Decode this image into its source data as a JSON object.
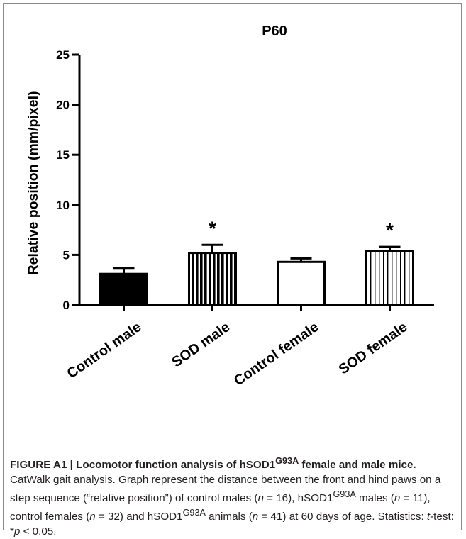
{
  "chart_data": {
    "type": "bar",
    "title": "P60",
    "ylabel": "Relative position (mm/pixel)",
    "xlabel": "",
    "ylim": [
      0,
      25
    ],
    "yticks": [
      0,
      5,
      10,
      15,
      20,
      25
    ],
    "categories": [
      "Control male",
      "SOD male",
      "Control female",
      "SOD female"
    ],
    "values": [
      3.1,
      5.2,
      4.3,
      5.4
    ],
    "errors": [
      0.6,
      0.8,
      0.35,
      0.4
    ],
    "significance": [
      "",
      "*",
      "",
      "*"
    ],
    "styles": [
      "solid-black",
      "black-vertical-stripes",
      "open-white",
      "white-vertical-stripes"
    ],
    "colors": {
      "bar_stroke": "#000000",
      "solid_fill": "#000000",
      "open_fill": "#ffffff"
    }
  },
  "caption": {
    "title": "FIGURE A1 | Locomotor function analysis of hSOD1",
    "title_sup": "G93A",
    "title_end": " female and male mice.",
    "s1": " CatWalk gait analysis. Graph represent the distance between the front and hind paws on a step sequence (“relative position”) of control males (",
    "n_label": "n",
    "s2": " = 16), hSOD1",
    "sup": "G93A",
    "s3": " males (",
    "s4": " = 11), control females (",
    "s5": " = 32) and hSOD1",
    "s6": " animals (",
    "s7": " = 41) at 60 days of age. Statistics: ",
    "ttest": "t",
    "s8": "-test: *",
    "p_label": "p",
    "s9": " < 0.05."
  }
}
